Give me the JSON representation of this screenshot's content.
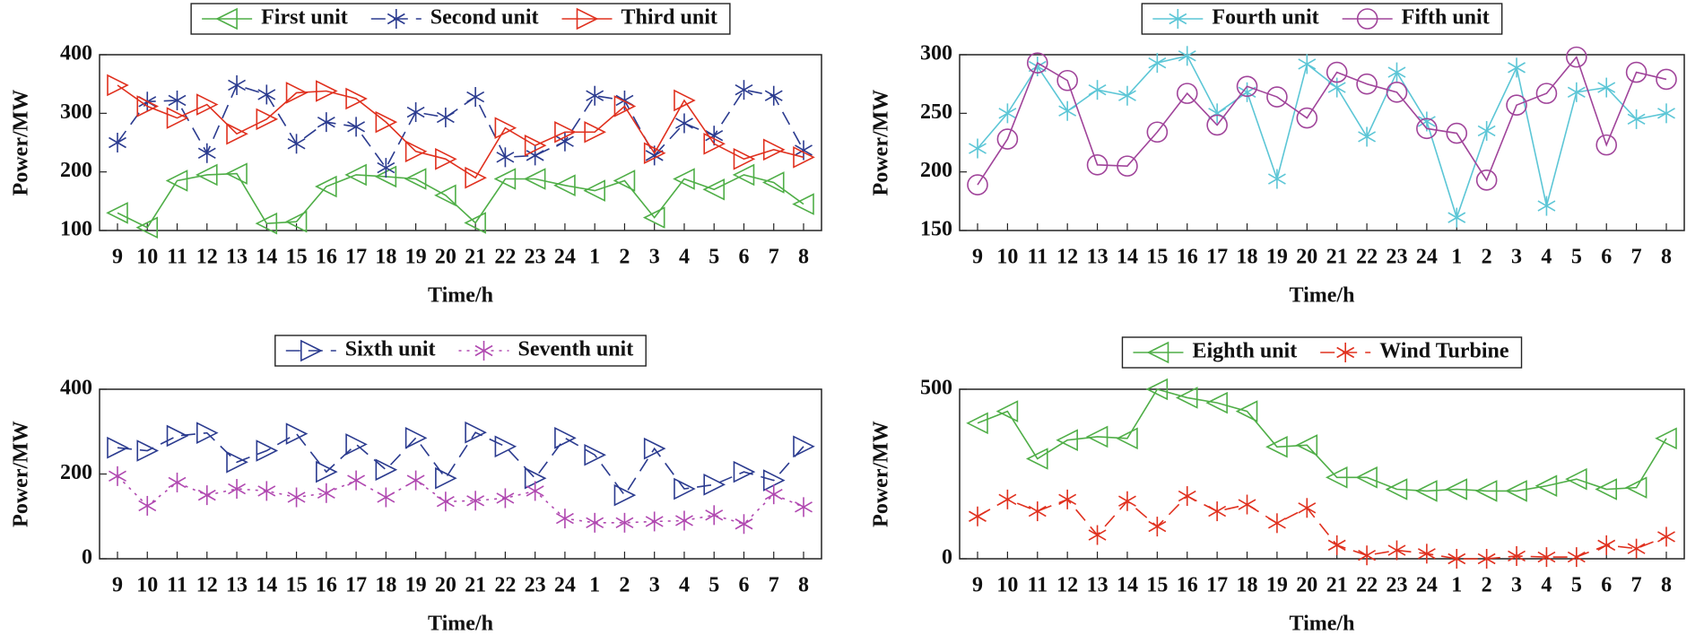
{
  "chart_data": [
    {
      "type": "line",
      "xlabel": "Time/h",
      "ylabel": "Power/MW",
      "categories": [
        "9",
        "10",
        "11",
        "12",
        "13",
        "14",
        "15",
        "16",
        "17",
        "18",
        "19",
        "20",
        "21",
        "22",
        "23",
        "24",
        "1",
        "2",
        "3",
        "4",
        "5",
        "6",
        "7",
        "8"
      ],
      "ylim": [
        100,
        400
      ],
      "yticks": [
        100,
        200,
        300,
        400
      ],
      "series": [
        {
          "name": "First unit",
          "color": "#4fae47",
          "marker": "triangle-left",
          "dash": "solid",
          "values": [
            130,
            105,
            185,
            195,
            197,
            112,
            115,
            175,
            195,
            192,
            188,
            160,
            113,
            188,
            188,
            177,
            168,
            185,
            122,
            188,
            170,
            195,
            182,
            145
          ]
        },
        {
          "name": "Second unit",
          "color": "#2b3b8f",
          "marker": "asterisk",
          "dash": "dashed",
          "values": [
            250,
            320,
            322,
            232,
            348,
            332,
            248,
            285,
            277,
            207,
            302,
            293,
            328,
            225,
            228,
            252,
            330,
            322,
            228,
            283,
            262,
            340,
            330,
            237
          ]
        },
        {
          "name": "Third unit",
          "color": "#e0301e",
          "marker": "triangle-right",
          "dash": "solid",
          "values": [
            348,
            312,
            292,
            315,
            265,
            290,
            335,
            338,
            325,
            285,
            235,
            222,
            190,
            275,
            245,
            268,
            268,
            312,
            232,
            322,
            248,
            222,
            238,
            225
          ]
        }
      ]
    },
    {
      "type": "line",
      "xlabel": "Time/h",
      "ylabel": "Power/MW",
      "categories": [
        "9",
        "10",
        "11",
        "12",
        "13",
        "14",
        "15",
        "16",
        "17",
        "18",
        "19",
        "20",
        "21",
        "22",
        "23",
        "24",
        "1",
        "2",
        "3",
        "4",
        "5",
        "6",
        "7",
        "8"
      ],
      "ylim": [
        150,
        300
      ],
      "yticks": [
        150,
        200,
        250,
        300
      ],
      "series": [
        {
          "name": "Fourth unit",
          "color": "#5cc6d6",
          "marker": "asterisk",
          "dash": "solid",
          "values": [
            220,
            250,
            290,
            252,
            270,
            265,
            293,
            299,
            250,
            268,
            194,
            292,
            272,
            230,
            285,
            243,
            161,
            235,
            289,
            171,
            268,
            272,
            245,
            250
          ]
        },
        {
          "name": "Fifth unit",
          "color": "#a0449a",
          "marker": "circle",
          "dash": "solid",
          "values": [
            189,
            228,
            293,
            278,
            206,
            205,
            234,
            267,
            240,
            273,
            264,
            246,
            285,
            275,
            268,
            237,
            233,
            193,
            257,
            267,
            298,
            223,
            285,
            279
          ]
        }
      ]
    },
    {
      "type": "line",
      "xlabel": "Time/h",
      "ylabel": "Power/MW",
      "categories": [
        "9",
        "10",
        "11",
        "12",
        "13",
        "14",
        "15",
        "16",
        "17",
        "18",
        "19",
        "20",
        "21",
        "22",
        "23",
        "24",
        "1",
        "2",
        "3",
        "4",
        "5",
        "6",
        "7",
        "8"
      ],
      "ylim": [
        0,
        400
      ],
      "yticks": [
        0,
        200,
        400
      ],
      "series": [
        {
          "name": "Sixth unit",
          "color": "#2b3b8f",
          "marker": "triangle-right",
          "dash": "dashed",
          "values": [
            262,
            255,
            290,
            297,
            228,
            255,
            295,
            205,
            270,
            210,
            285,
            190,
            298,
            265,
            190,
            285,
            245,
            150,
            260,
            165,
            175,
            205,
            185,
            265
          ]
        },
        {
          "name": "Seventh unit",
          "color": "#b048b0",
          "marker": "asterisk",
          "dash": "dotted",
          "values": [
            195,
            125,
            180,
            150,
            165,
            160,
            145,
            155,
            185,
            145,
            185,
            135,
            137,
            143,
            160,
            95,
            85,
            85,
            88,
            90,
            103,
            82,
            152,
            122
          ]
        }
      ]
    },
    {
      "type": "line",
      "xlabel": "Time/h",
      "ylabel": "Power/MW",
      "categories": [
        "9",
        "10",
        "11",
        "12",
        "13",
        "14",
        "15",
        "16",
        "17",
        "18",
        "19",
        "20",
        "21",
        "22",
        "23",
        "24",
        "1",
        "2",
        "3",
        "4",
        "5",
        "6",
        "7",
        "8"
      ],
      "ylim": [
        0,
        500
      ],
      "yticks": [
        0,
        500
      ],
      "series": [
        {
          "name": "Eighth unit",
          "color": "#4fae47",
          "marker": "triangle-left",
          "dash": "solid",
          "values": [
            400,
            435,
            295,
            350,
            360,
            355,
            500,
            475,
            460,
            435,
            330,
            335,
            240,
            240,
            205,
            200,
            205,
            200,
            200,
            215,
            235,
            205,
            210,
            355
          ]
        },
        {
          "name": "Wind Turbine",
          "color": "#e0301e",
          "marker": "asterisk",
          "dash": "dashed",
          "values": [
            125,
            175,
            140,
            175,
            70,
            170,
            95,
            185,
            140,
            160,
            105,
            150,
            40,
            10,
            25,
            15,
            0,
            0,
            8,
            5,
            5,
            40,
            30,
            65
          ]
        }
      ]
    }
  ]
}
